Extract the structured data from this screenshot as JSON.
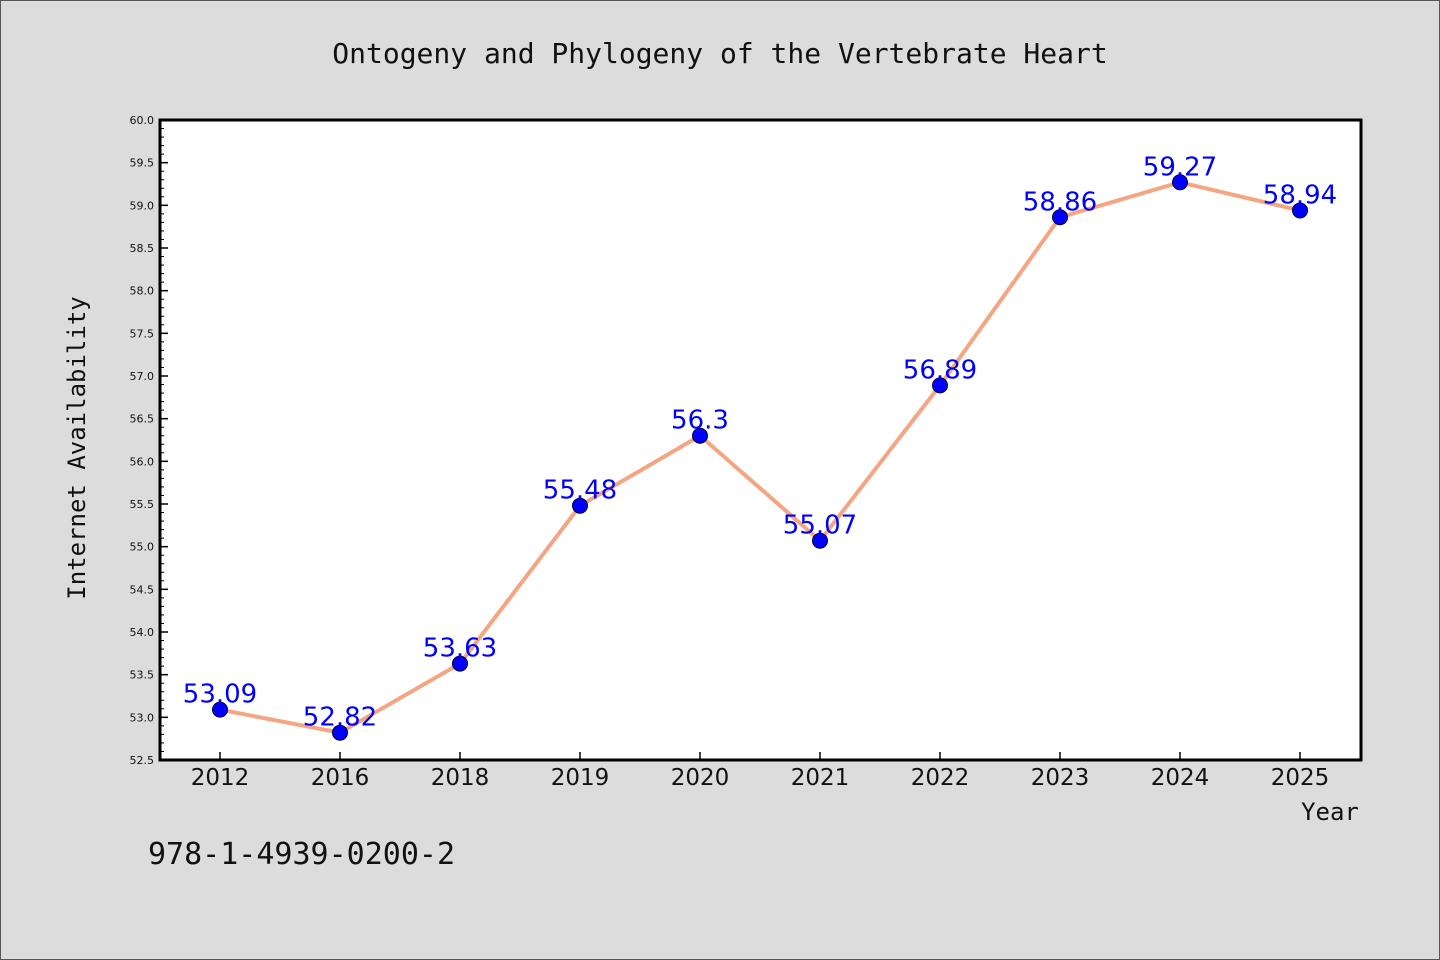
{
  "chart_data": {
    "type": "line",
    "title": "Ontogeny and Phylogeny of the Vertebrate Heart",
    "xlabel": "Year",
    "ylabel": "Internet Availability",
    "categories": [
      "2012",
      "2016",
      "2018",
      "2019",
      "2020",
      "2021",
      "2022",
      "2023",
      "2024",
      "2025"
    ],
    "series": [
      {
        "values": [
          53.09,
          52.82,
          53.63,
          55.48,
          56.3,
          55.07,
          56.89,
          58.86,
          59.27,
          58.94
        ],
        "labels": [
          "53.09",
          "52.82",
          "53.63",
          "55.48",
          "56.3",
          "55.07",
          "56.89",
          "58.86",
          "59.27",
          "58.94"
        ]
      }
    ],
    "ylim": [
      52.5,
      60.0
    ],
    "yticks": [
      "52.5",
      "53.0",
      "53.5",
      "54.0",
      "54.5",
      "55.0",
      "55.5",
      "56.0",
      "56.5",
      "57.0",
      "57.5",
      "58.0",
      "58.5",
      "59.0",
      "59.5",
      "60.0"
    ],
    "grid": false,
    "legend": "none",
    "colors": {
      "line": "#f4a582",
      "marker": "#0000ff",
      "data_label": "#0000ff",
      "plot_background": "#ffffff",
      "figure_background": "#dcdcdc"
    }
  },
  "footer": {
    "isbn": "978-1-4939-0200-2"
  }
}
